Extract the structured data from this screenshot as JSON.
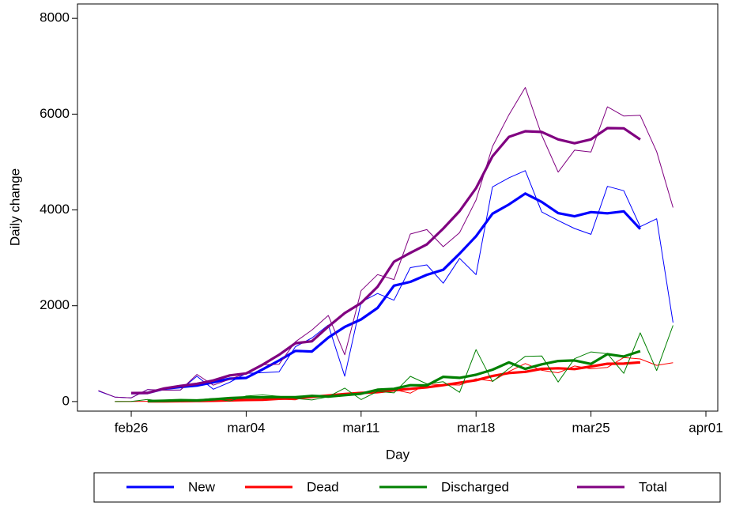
{
  "chart_data": {
    "type": "line",
    "x_label": "Day",
    "y_label": "Daily change",
    "categories": [
      "feb24",
      "feb25",
      "feb26",
      "feb27",
      "feb28",
      "feb29",
      "mar01",
      "mar02",
      "mar03",
      "mar04",
      "mar05",
      "mar06",
      "mar07",
      "mar08",
      "mar09",
      "mar10",
      "mar11",
      "mar12",
      "mar13",
      "mar14",
      "mar15",
      "mar16",
      "mar17",
      "mar18",
      "mar19",
      "mar20",
      "mar21",
      "mar22",
      "mar23",
      "mar24",
      "mar25",
      "mar26",
      "mar27",
      "mar28",
      "mar29",
      "mar30",
      "mar31",
      "apr01"
    ],
    "xticks": [
      "feb26",
      "mar04",
      "mar11",
      "mar18",
      "mar25",
      "apr01"
    ],
    "ylim": [
      -200,
      8300
    ],
    "yticks": [
      0,
      2000,
      4000,
      6000,
      8000
    ],
    "series": [
      {
        "name": "New",
        "color": "#0000ff",
        "values": [
          221,
          93,
          78,
          250,
          238,
          240,
          528,
          258,
          403,
          587,
          602,
          620,
          1145,
          1326,
          1598,
          529,
          2076,
          2256,
          2116,
          2795,
          2853,
          2470,
          2989,
          2648,
          4480,
          4670,
          4821,
          3957,
          3780,
          3612,
          3491,
          4492,
          4401,
          3651,
          3815,
          1648,
          null,
          null
        ],
        "smoothed": [
          null,
          null,
          176,
          180,
          267,
          303,
          333,
          403,
          476,
          494,
          671,
          856,
          1058,
          1044,
          1335,
          1557,
          1715,
          1954,
          2419,
          2498,
          2645,
          2751,
          3088,
          3451,
          3922,
          4115,
          4342,
          4168,
          3932,
          3866,
          3955,
          3929,
          3970,
          3601,
          null,
          null,
          null,
          null
        ]
      },
      {
        "name": "Dead",
        "color": "#ff0000",
        "values": [
          null,
          3,
          2,
          5,
          4,
          8,
          5,
          18,
          27,
          28,
          41,
          49,
          36,
          133,
          97,
          168,
          196,
          189,
          250,
          175,
          368,
          349,
          345,
          475,
          427,
          627,
          793,
          651,
          601,
          743,
          683,
          712,
          919,
          889,
          756,
          812,
          null,
          null
        ],
        "smoothed": [
          null,
          null,
          null,
          4,
          5,
          8,
          12,
          17,
          24,
          33,
          36,
          57,
          71,
          97,
          126,
          157,
          180,
          196,
          236,
          266,
          297,
          342,
          393,
          445,
          533,
          595,
          620,
          683,
          694,
          678,
          732,
          789,
          792,
          818,
          null,
          null,
          null,
          null
        ]
      },
      {
        "name": "Discharged",
        "color": "#008000",
        "values": [
          null,
          0,
          2,
          42,
          1,
          4,
          33,
          66,
          11,
          116,
          138,
          109,
          66,
          33,
          102,
          280,
          41,
          213,
          181,
          527,
          369,
          414,
          192,
          1084,
          415,
          689,
          943,
          952,
          408,
          894,
          1036,
          999,
          589,
          1434,
          646,
          1590,
          null,
          null
        ],
        "smoothed": [
          null,
          null,
          null,
          10,
          16,
          29,
          23,
          46,
          73,
          88,
          88,
          92,
          90,
          118,
          104,
          134,
          163,
          248,
          266,
          341,
          337,
          517,
          495,
          559,
          665,
          817,
          681,
          777,
          847,
          858,
          785,
          990,
          941,
          1052,
          null,
          null,
          null,
          null
        ]
      },
      {
        "name": "Total",
        "color": "#800080",
        "values": [
          229,
          93,
          78,
          250,
          238,
          240,
          566,
          342,
          466,
          587,
          769,
          778,
          1247,
          1492,
          1797,
          977,
          2313,
          2651,
          2547,
          3497,
          3590,
          3233,
          3526,
          4207,
          5322,
          5986,
          6557,
          5560,
          4789,
          5249,
          5210,
          6153,
          5959,
          5974,
          5217,
          4050,
          null,
          null
        ],
        "smoothed": [
          null,
          null,
          178,
          180,
          274,
          327,
          370,
          440,
          546,
          588,
          769,
          975,
          1217,
          1258,
          1565,
          1846,
          2057,
          2397,
          2920,
          3104,
          3279,
          3611,
          3976,
          4455,
          5120,
          5526,
          5643,
          5628,
          5473,
          5392,
          5472,
          5709,
          5703,
          5471,
          null,
          null,
          null,
          null
        ]
      }
    ],
    "legend": "bottom"
  }
}
